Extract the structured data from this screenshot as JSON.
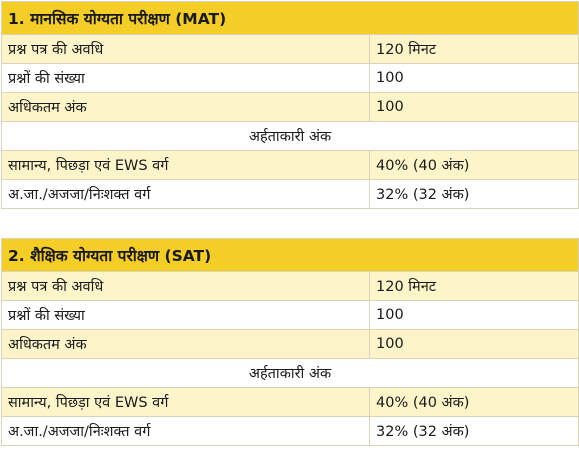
{
  "sections": [
    {
      "title": "1. मानसिक योग्यता परीक्षण (MAT)",
      "rows": [
        {
          "label": "प्रश्न पत्र की अवधि",
          "value": "120 मिनट"
        },
        {
          "label": "प्रश्नों की संख्या",
          "value": "100"
        },
        {
          "label": "अधिकतम अंक",
          "value": "100"
        }
      ],
      "qualifying_heading": "अर्हताकारी अंक",
      "qualifying_rows": [
        {
          "label": "सामान्य, पिछड़ा एवं EWS वर्ग",
          "value": "40% (40 अंक)"
        },
        {
          "label": "अ.जा./अजजा/निःशक्त वर्ग",
          "value": "32% (32 अंक)"
        }
      ]
    },
    {
      "title": "2. शैक्षिक योग्यता परीक्षण (SAT)",
      "rows": [
        {
          "label": "प्रश्न पत्र की अवधि",
          "value": "120 मिनट"
        },
        {
          "label": "प्रश्नों की संख्या",
          "value": "100"
        },
        {
          "label": "अधिकतम अंक",
          "value": "100"
        }
      ],
      "qualifying_heading": "अर्हताकारी अंक",
      "qualifying_rows": [
        {
          "label": "सामान्य, पिछड़ा एवं EWS वर्ग",
          "value": "40% (40 अंक)"
        },
        {
          "label": "अ.जा./अजजा/निःशक्त वर्ग",
          "value": "32% (32 अंक)"
        }
      ]
    }
  ],
  "colors": {
    "header_bg": "#f4cd26",
    "alt_row_bg": "#fdf5c9",
    "row_bg": "#ffffff",
    "border": "#d9d4b8"
  }
}
